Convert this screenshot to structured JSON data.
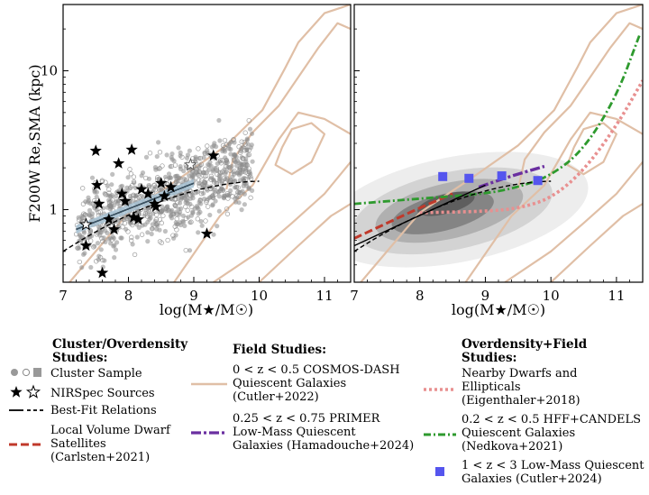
{
  "chart_data": [
    {
      "type": "scatter",
      "panel": "left",
      "xlabel": "log(M★/M☉)",
      "ylabel": "F200W Re,SMA (kpc)",
      "xlim": [
        7.0,
        11.4
      ],
      "ylim": [
        0.3,
        30.0
      ],
      "ylog": true,
      "xticks": [
        7,
        8,
        9,
        10,
        11
      ],
      "yticks": [
        1,
        10
      ],
      "grid": false,
      "series": [
        {
          "name": "Cluster Sample",
          "style": "scatter-cloud",
          "summary": {
            "x_range": [
              7.2,
              9.9
            ],
            "y_median_range": [
              0.7,
              2.0
            ],
            "n_points": 900
          }
        },
        {
          "name": "NIRSpec Sources",
          "style": "stars",
          "points": [
            [
              7.35,
              0.55
            ],
            [
              7.5,
              2.65
            ],
            [
              7.52,
              1.5
            ],
            [
              7.55,
              1.1
            ],
            [
              7.6,
              0.35
            ],
            [
              7.7,
              0.85
            ],
            [
              7.78,
              0.72
            ],
            [
              7.85,
              2.15
            ],
            [
              7.9,
              1.3
            ],
            [
              7.95,
              1.15
            ],
            [
              8.05,
              2.7
            ],
            [
              8.08,
              0.88
            ],
            [
              8.15,
              0.85
            ],
            [
              8.2,
              1.4
            ],
            [
              8.3,
              1.3
            ],
            [
              8.4,
              1.1
            ],
            [
              8.42,
              1.05
            ],
            [
              8.5,
              1.55
            ],
            [
              8.55,
              1.25
            ],
            [
              8.65,
              1.45
            ],
            [
              8.95,
              2.1
            ],
            [
              9.2,
              0.67
            ],
            [
              9.3,
              2.45
            ]
          ]
        },
        {
          "name": "Best-Fit Relations",
          "style": "solid+dashed",
          "solid": {
            "x": [
              7.2,
              9.0
            ],
            "y": [
              0.72,
              1.55
            ]
          },
          "dashed": {
            "x": [
              7.0,
              10.0
            ],
            "y": [
              0.5,
              1.6
            ]
          }
        },
        {
          "name": "0<z<0.5 COSMOS-DASH Quiescent Galaxies (Cutler+2022)",
          "style": "contours",
          "color": "#e0bfa6"
        }
      ]
    },
    {
      "type": "line",
      "panel": "right",
      "xlabel": "log(M★/M☉)",
      "xlim": [
        7.0,
        11.4
      ],
      "ylim": [
        0.3,
        30.0
      ],
      "ylog": true,
      "xticks": [
        7,
        8,
        9,
        10,
        11
      ],
      "grid": false,
      "series": [
        {
          "name": "Local Volume Dwarf Satellites (Carlsten+2021)",
          "color": "#c0392b",
          "x": [
            7.0,
            7.5,
            8.0,
            8.5
          ],
          "y": [
            0.62,
            0.8,
            1.03,
            1.3
          ]
        },
        {
          "name": "0.25<z<0.75 PRIMER Low-Mass Quiescent Galaxies (Hamadouche+2024)",
          "color": "#6a2fa0",
          "x": [
            8.9,
            9.4,
            9.9
          ],
          "y": [
            1.45,
            1.75,
            2.05
          ]
        },
        {
          "name": "Nearby Dwarfs and Ellipticals (Eigenthaler+2018)",
          "color": "#e89090",
          "x": [
            8.0,
            9.0,
            9.5,
            10.0,
            10.5,
            11.0,
            11.4
          ],
          "y": [
            0.95,
            0.97,
            1.02,
            1.2,
            1.9,
            4.0,
            8.5
          ]
        },
        {
          "name": "0.2<z<0.5 HFF+CANDELS Quiescent Galaxies (Nedkova+2021)",
          "color": "#2e9a2e",
          "x": [
            7.0,
            8.0,
            9.0,
            9.5,
            10.0,
            10.5,
            11.0,
            11.35
          ],
          "y": [
            1.1,
            1.2,
            1.3,
            1.45,
            1.75,
            2.7,
            6.5,
            18.0
          ]
        },
        {
          "name": "1<z<3 Low-Mass Quiescent Galaxies (Cutler+2024)",
          "color": "#5555ee",
          "x": [
            8.35,
            8.75,
            9.25,
            9.8
          ],
          "y": [
            1.73,
            1.68,
            1.75,
            1.62
          ]
        },
        {
          "name": "Best-Fit Relations",
          "color": "#000000",
          "x": [
            7.0,
            10.0
          ],
          "y": [
            0.5,
            1.6
          ]
        }
      ]
    }
  ],
  "legend": {
    "col1": {
      "heading": [
        "Cluster/Overdensity",
        "Studies:"
      ],
      "items": [
        {
          "label": [
            "Cluster Sample"
          ]
        },
        {
          "label": [
            "NIRSpec Sources"
          ]
        },
        {
          "label": [
            "Best-Fit Relations"
          ]
        },
        {
          "label": [
            "Local Volume Dwarf",
            "Satellites",
            "(Carlsten+2021)"
          ]
        }
      ]
    },
    "col2": {
      "heading": [
        "Field Studies:"
      ],
      "items": [
        {
          "label": [
            "0 < z < 0.5 COSMOS-DASH",
            "Quiescent Galaxies",
            "(Cutler+2022)"
          ]
        },
        {
          "label": [
            "0.25 < z < 0.75 PRIMER",
            "Low-Mass Quiescent",
            "Galaxies (Hamadouche+2024)"
          ]
        }
      ]
    },
    "col3": {
      "heading": [
        "Overdensity+Field",
        "Studies:"
      ],
      "items": [
        {
          "label": [
            "Nearby Dwarfs and",
            "Ellipticals",
            "(Eigenthaler+2018)"
          ]
        },
        {
          "label": [
            "0.2 < z < 0.5 HFF+CANDELS",
            "Quiescent Galaxies",
            "(Nedkova+2021)"
          ]
        },
        {
          "label": [
            "1 < z < 3 Low-Mass Quiescent",
            "Galaxies (Cutler+2024)"
          ]
        }
      ]
    }
  },
  "colors": {
    "contour": "#e0bfa6",
    "carlsten": "#c0392b",
    "hamadouche": "#6a2fa0",
    "eigenthaler": "#e89090",
    "nedkova": "#2e9a2e",
    "cutler24": "#5555ee"
  }
}
